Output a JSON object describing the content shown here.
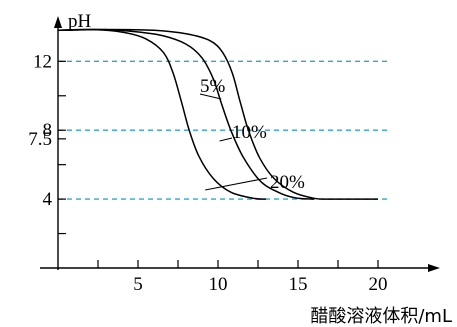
{
  "chart_data": {
    "type": "line",
    "title": "",
    "ylabel": "pH",
    "xlabel": "醋酸溶液体积/mL",
    "xlim": [
      0,
      25
    ],
    "ylim": [
      0,
      14.4
    ],
    "x_ticks": [
      {
        "value": 5,
        "label": "5"
      },
      {
        "value": 10,
        "label": "10"
      },
      {
        "value": 15,
        "label": "15"
      },
      {
        "value": 20,
        "label": "20"
      }
    ],
    "x_minor_ticks": [
      2.5,
      7.5,
      12.5,
      17.5
    ],
    "y_ticks": [
      {
        "value": 12,
        "label": "12"
      },
      {
        "value": 8,
        "label": "8"
      },
      {
        "value": 7.5,
        "label": "7.5"
      },
      {
        "value": 4,
        "label": "4"
      }
    ],
    "y_minor_ticks": [
      2,
      6,
      10
    ],
    "reference_lines": [
      12,
      8,
      4
    ],
    "series": [
      {
        "name": "5%",
        "points": [
          [
            0,
            13.8
          ],
          [
            3,
            13.85
          ],
          [
            6,
            13.8
          ],
          [
            8,
            13.6
          ],
          [
            9.5,
            13.2
          ],
          [
            10.3,
            12.5
          ],
          [
            10.9,
            11.3
          ],
          [
            11.4,
            9.6
          ],
          [
            11.9,
            8
          ],
          [
            12.6,
            6.4
          ],
          [
            13.5,
            5.2
          ],
          [
            14.7,
            4.4
          ],
          [
            16,
            4.05
          ],
          [
            17,
            4
          ],
          [
            20,
            4
          ]
        ]
      },
      {
        "name": "10%",
        "points": [
          [
            0,
            13.8
          ],
          [
            2.5,
            13.85
          ],
          [
            4.5,
            13.75
          ],
          [
            6.5,
            13.5
          ],
          [
            8,
            13
          ],
          [
            9,
            12.2
          ],
          [
            9.7,
            11
          ],
          [
            10.2,
            9.6
          ],
          [
            10.8,
            8
          ],
          [
            11.6,
            6.4
          ],
          [
            12.7,
            5
          ],
          [
            14,
            4.3
          ],
          [
            15,
            4.05
          ],
          [
            16,
            4
          ]
        ]
      },
      {
        "name": "20%",
        "points": [
          [
            0,
            13.8
          ],
          [
            2,
            13.85
          ],
          [
            4,
            13.7
          ],
          [
            5.5,
            13.3
          ],
          [
            6.6,
            12.5
          ],
          [
            7.2,
            11.3
          ],
          [
            7.7,
            9.7
          ],
          [
            8.2,
            8
          ],
          [
            8.8,
            6.5
          ],
          [
            9.7,
            5.2
          ],
          [
            10.8,
            4.4
          ],
          [
            12.2,
            4.05
          ],
          [
            13,
            4
          ]
        ]
      }
    ],
    "annotations": [
      {
        "text": "5%",
        "series": "5%"
      },
      {
        "text": "10%",
        "series": "10%"
      },
      {
        "text": "20%",
        "series": "20%"
      }
    ],
    "grid": false,
    "legend": "none"
  },
  "colors": {
    "axis": "#000000",
    "reference_line": "#2aa6d8",
    "curve": "#000000"
  }
}
